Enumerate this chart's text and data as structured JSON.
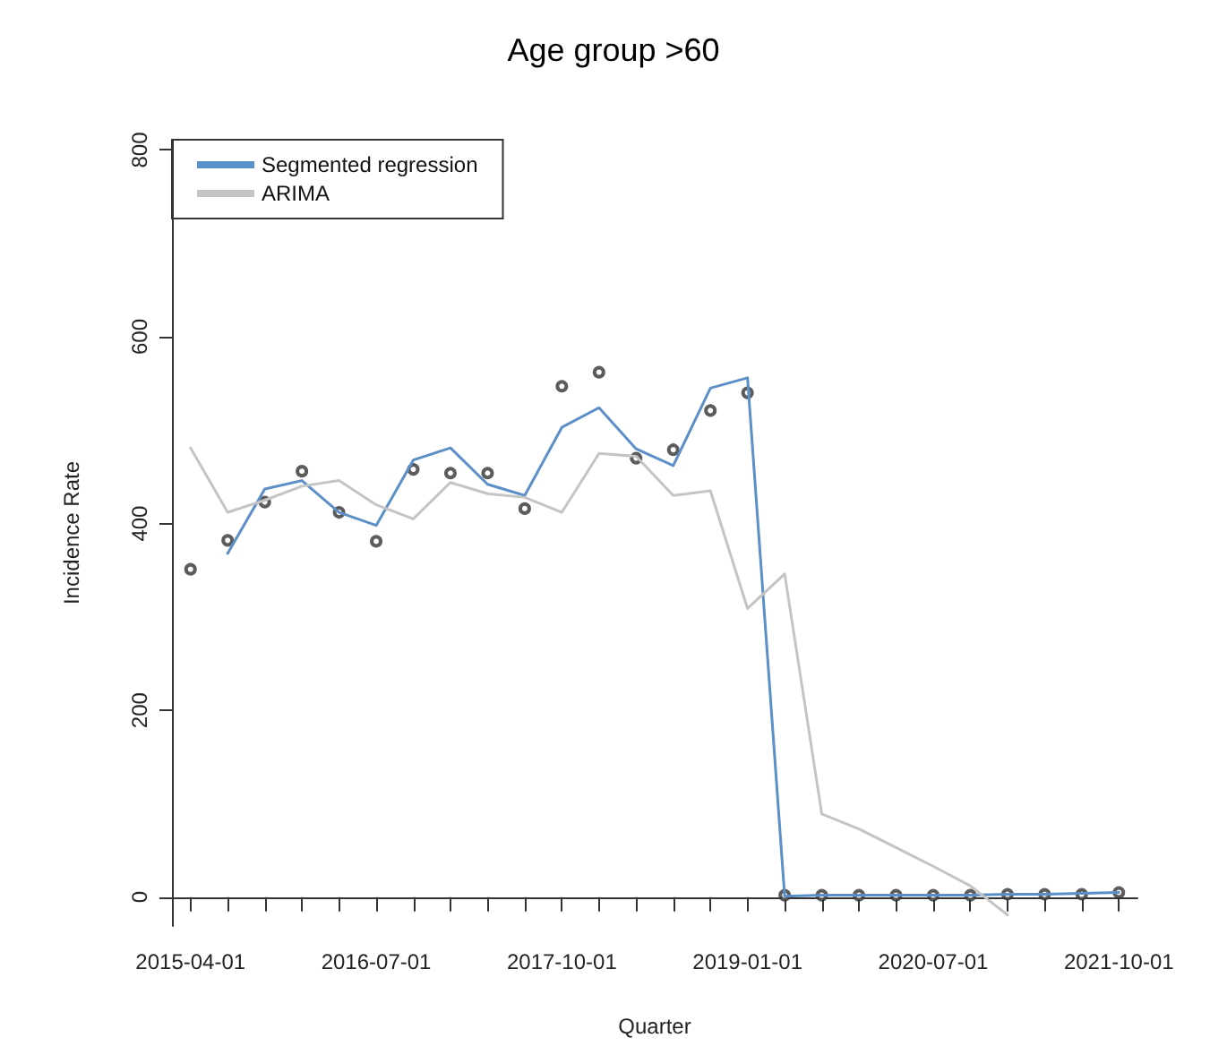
{
  "chart_data": {
    "type": "line",
    "title": "Age group >60",
    "xlabel": "Quarter",
    "ylabel": "Incidence Rate",
    "categories": [
      "2015-04-01",
      null,
      null,
      null,
      null,
      "2016-07-01",
      null,
      null,
      null,
      null,
      "2017-10-01",
      null,
      null,
      null,
      null,
      "2019-01-01",
      null,
      null,
      null,
      null,
      "2020-07-01",
      null,
      null,
      null,
      null,
      "2021-10-01"
    ],
    "series": [
      {
        "type": "scatter",
        "color": "#333333",
        "marker": "circle",
        "values": [
          351,
          382,
          423,
          456,
          412,
          381,
          458,
          454,
          454,
          416,
          547,
          562,
          470,
          479,
          521,
          540,
          2,
          2,
          2,
          2,
          2,
          2,
          3,
          3,
          3,
          5
        ]
      },
      {
        "name": "Segmented regression",
        "color": "#5b8fc7",
        "marker": "none",
        "values": [
          null,
          368,
          437,
          446,
          412,
          398,
          468,
          481,
          442,
          430,
          503,
          524,
          480,
          462,
          545,
          556,
          1,
          2,
          2,
          2,
          2,
          2,
          3,
          3,
          4,
          5
        ]
      },
      {
        "name": "ARIMA",
        "color": "#c4c4c4",
        "marker": "none",
        "values": [
          481,
          412,
          425,
          440,
          446,
          420,
          405,
          444,
          432,
          428,
          412,
          475,
          472,
          430,
          435,
          309,
          346,
          89,
          73,
          53,
          33,
          12,
          -19,
          null,
          null,
          null
        ]
      }
    ],
    "ylim": [
      -31,
      811
    ],
    "yticks": [
      0,
      200,
      400,
      600,
      800
    ],
    "grid": false,
    "legend": "top left",
    "line_style": "solid"
  }
}
